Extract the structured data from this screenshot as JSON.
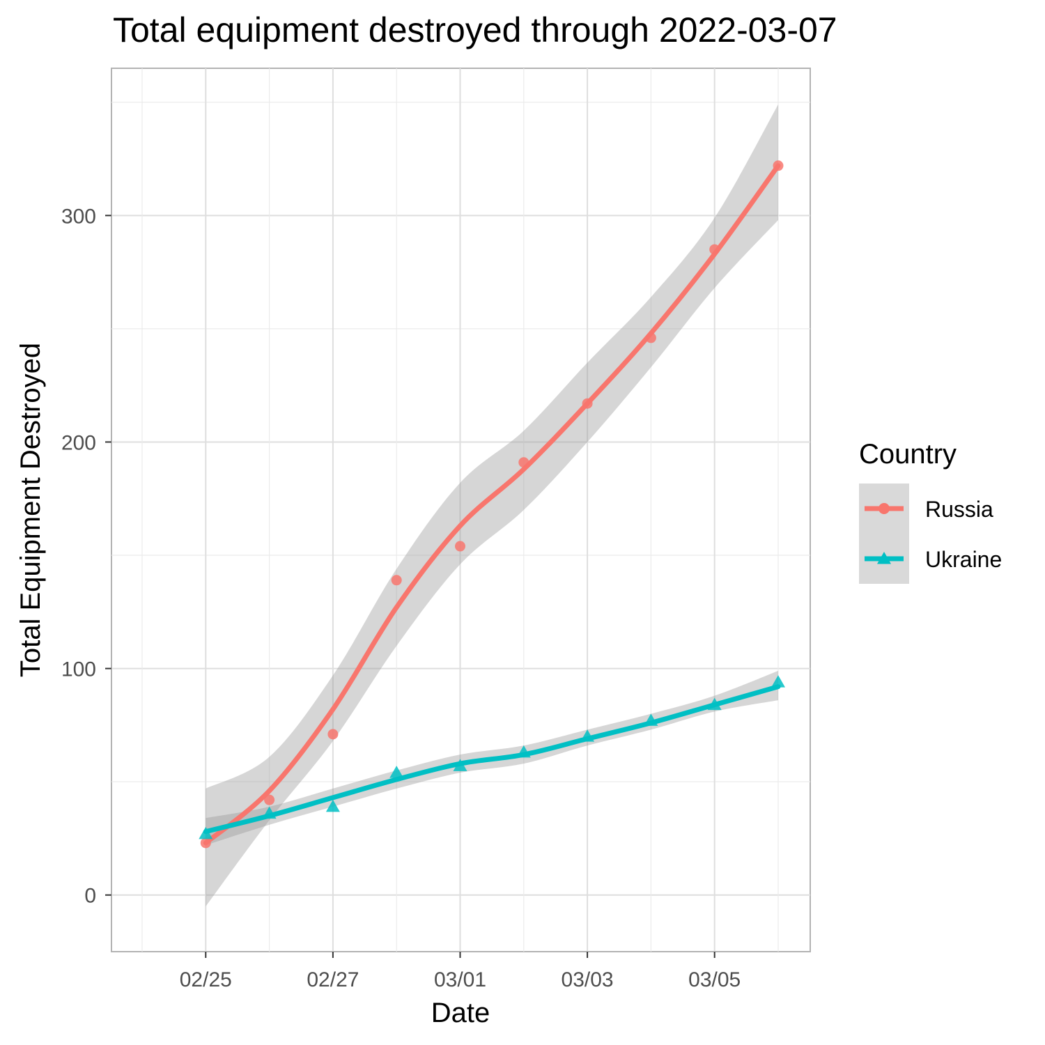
{
  "chart_data": {
    "type": "line",
    "title": "Total equipment destroyed through 2022-03-07",
    "xlabel": "Date",
    "ylabel": "Total Equipment Destroyed",
    "x_ticks": [
      "02/25",
      "02/27",
      "03/01",
      "03/03",
      "03/05"
    ],
    "y_ticks": [
      0,
      100,
      200,
      300
    ],
    "ylim": [
      -25,
      365
    ],
    "x": [
      "02/24",
      "02/25",
      "02/26",
      "02/27",
      "02/28",
      "03/01",
      "03/02",
      "03/03",
      "03/04",
      "03/05",
      "03/06"
    ],
    "legend": {
      "title": "Country",
      "position": "right"
    },
    "grid": true,
    "smoothing": "loess with confidence band",
    "series": [
      {
        "name": "Russia",
        "color": "#F8766D",
        "marker": "circle",
        "points": [
          [
            "02/25",
            23
          ],
          [
            "02/26",
            42
          ],
          [
            "02/27",
            71
          ],
          [
            "02/28",
            139
          ],
          [
            "03/01",
            154
          ],
          [
            "03/02",
            191
          ],
          [
            "03/03",
            217
          ],
          [
            "03/04",
            246
          ],
          [
            "03/05",
            285
          ],
          [
            "03/06",
            322
          ]
        ],
        "fit": [
          [
            "02/25",
            23
          ],
          [
            "02/26",
            46
          ],
          [
            "02/27",
            82
          ],
          [
            "02/28",
            127
          ],
          [
            "03/01",
            163
          ],
          [
            "03/02",
            188
          ],
          [
            "03/03",
            217
          ],
          [
            "03/04",
            248
          ],
          [
            "03/05",
            283
          ],
          [
            "03/06",
            322
          ]
        ],
        "band_low": [
          [
            "02/25",
            -5
          ],
          [
            "02/26",
            33
          ],
          [
            "02/27",
            68
          ],
          [
            "02/28",
            110
          ],
          [
            "03/01",
            146
          ],
          [
            "03/02",
            170
          ],
          [
            "03/03",
            200
          ],
          [
            "03/04",
            233
          ],
          [
            "03/05",
            268
          ],
          [
            "03/06",
            298
          ]
        ],
        "band_high": [
          [
            "02/25",
            47
          ],
          [
            "02/26",
            61
          ],
          [
            "02/27",
            97
          ],
          [
            "02/28",
            144
          ],
          [
            "03/01",
            182
          ],
          [
            "03/02",
            205
          ],
          [
            "03/03",
            235
          ],
          [
            "03/04",
            264
          ],
          [
            "03/05",
            299
          ],
          [
            "03/06",
            349
          ]
        ]
      },
      {
        "name": "Ukraine",
        "color": "#00BFC4",
        "marker": "triangle",
        "points": [
          [
            "02/25",
            27
          ],
          [
            "02/26",
            36
          ],
          [
            "02/27",
            39
          ],
          [
            "02/28",
            54
          ],
          [
            "03/01",
            57
          ],
          [
            "03/02",
            63
          ],
          [
            "03/03",
            70
          ],
          [
            "03/04",
            77
          ],
          [
            "03/05",
            84
          ],
          [
            "03/06",
            94
          ]
        ],
        "fit": [
          [
            "02/25",
            28
          ],
          [
            "02/26",
            35
          ],
          [
            "02/27",
            43
          ],
          [
            "02/28",
            51
          ],
          [
            "03/01",
            58
          ],
          [
            "03/02",
            62
          ],
          [
            "03/03",
            69
          ],
          [
            "03/04",
            76
          ],
          [
            "03/05",
            84
          ],
          [
            "03/06",
            92
          ]
        ],
        "band_low": [
          [
            "02/25",
            22
          ],
          [
            "02/26",
            31
          ],
          [
            "02/27",
            39
          ],
          [
            "02/28",
            47
          ],
          [
            "03/01",
            54
          ],
          [
            "03/02",
            58
          ],
          [
            "03/03",
            66
          ],
          [
            "03/04",
            73
          ],
          [
            "03/05",
            81
          ],
          [
            "03/06",
            86
          ]
        ],
        "band_high": [
          [
            "02/25",
            34
          ],
          [
            "02/26",
            39
          ],
          [
            "02/27",
            47
          ],
          [
            "02/28",
            55
          ],
          [
            "03/01",
            62
          ],
          [
            "03/02",
            66
          ],
          [
            "03/03",
            73
          ],
          [
            "03/04",
            80
          ],
          [
            "03/05",
            88
          ],
          [
            "03/06",
            99
          ]
        ]
      }
    ]
  }
}
